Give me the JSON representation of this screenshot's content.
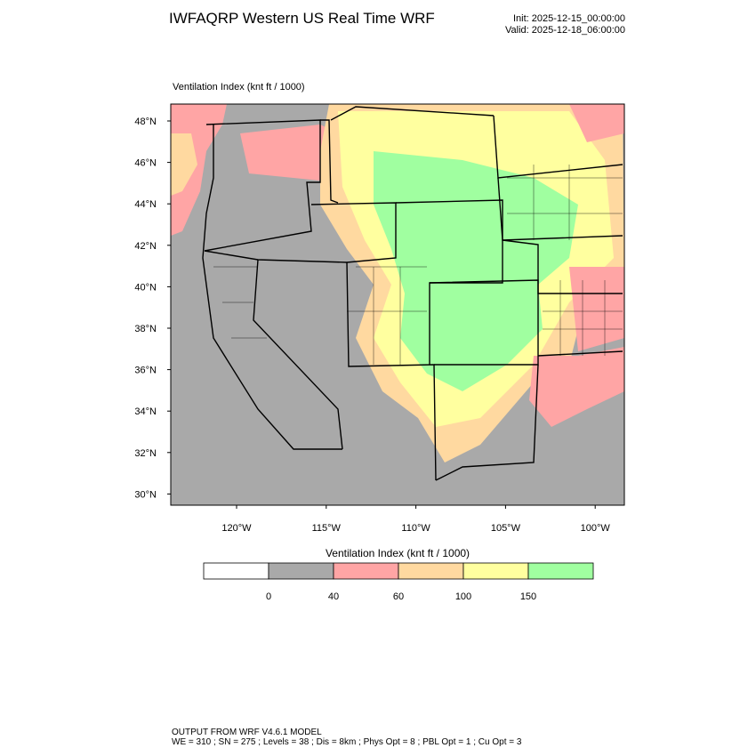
{
  "header": {
    "title": "IWFAQRP Western US Real Time WRF",
    "init": "Init: 2025-12-15_00:00:00",
    "valid": "Valid: 2025-12-18_06:00:00"
  },
  "map": {
    "label": "Ventilation Index   (knt ft / 1000)",
    "lat_labels": [
      "48°N",
      "46°N",
      "44°N",
      "42°N",
      "40°N",
      "38°N",
      "36°N",
      "34°N",
      "32°N",
      "30°N"
    ],
    "lon_labels": [
      "120°W",
      "115°W",
      "110°W",
      "105°W",
      "100°W"
    ]
  },
  "colorbar": {
    "title": "Ventilation Index   (knt ft / 1000)",
    "colors": [
      "#ffffff",
      "#a9a9a9",
      "#ffa5a5",
      "#ffd9a0",
      "#ffff9f",
      "#a0ffa0"
    ],
    "ticks": [
      0,
      40,
      60,
      100,
      150
    ]
  },
  "footer": {
    "line1": "OUTPUT FROM WRF V4.6.1 MODEL",
    "line2": "WE = 310 ; SN = 275 ; Levels = 38 ; Dis = 8km ; Phys Opt = 8 ; PBL Opt = 1 ; Cu Opt = 3"
  }
}
